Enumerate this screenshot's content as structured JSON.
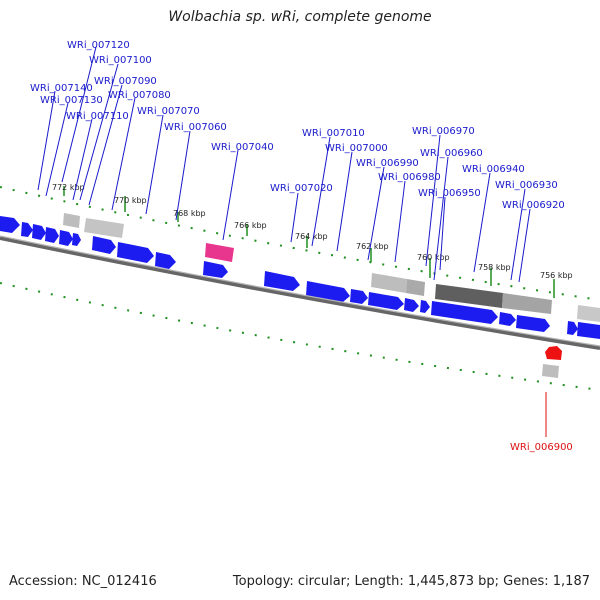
{
  "title": "Wolbachia sp. wRi, complete genome",
  "footer": {
    "accession": "Accession: NC_012416",
    "stats": "Topology: circular; Length: 1,445,873 bp; Genes: 1,187"
  },
  "colors": {
    "forward_gene": "#1c1cf0",
    "highlight_gene": "#e8368e",
    "selected_gene": "#ee1111",
    "label": "#1a1acc",
    "selected_label": "#dd1111",
    "tick": "#1f8f1f",
    "backbone": "#7a7a7a"
  },
  "kbp_labels": [
    "772 kbp",
    "770 kbp",
    "768 kbp",
    "766 kbp",
    "764 kbp",
    "762 kbp",
    "760 kbp",
    "758 kbp",
    "756 kbp"
  ],
  "gene_labels": [
    "WRi_007120",
    "WRi_007100",
    "WRi_007140",
    "WRi_007090",
    "WRi_007130",
    "WRi_007080",
    "WRi_007110",
    "WRi_007070",
    "WRi_007060",
    "WRi_007040",
    "WRi_007010",
    "WRi_007000",
    "WRi_007020",
    "WRi_006990",
    "WRi_006980",
    "WRi_006970",
    "WRi_006960",
    "WRi_006940",
    "WRi_006950",
    "WRi_006930",
    "WRi_006920"
  ],
  "selected_gene_label": "WRi_006900"
}
